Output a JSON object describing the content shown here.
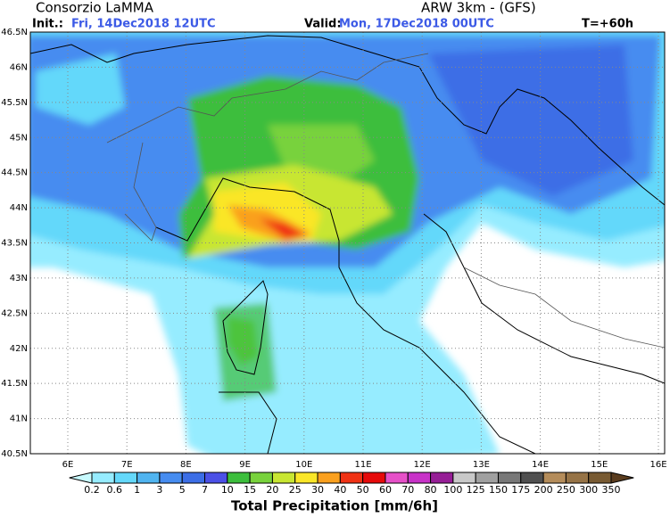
{
  "header": {
    "org": "Consorzio LaMMA",
    "model": "ARW 3km - (GFS)",
    "init_label": "Init.:",
    "init_time": "Fri, 14Dec2018 12UTC",
    "valid_label": "Valid:",
    "valid_time": "Mon, 17Dec2018 00UTC",
    "lead": "T=+60h"
  },
  "map": {
    "lat_labels": [
      "46.5N",
      "46N",
      "45.5N",
      "45N",
      "44.5N",
      "44N",
      "43.5N",
      "43N",
      "42.5N",
      "42N",
      "41.5N",
      "41N",
      "40.5N"
    ],
    "lon_labels": [
      "6E",
      "7E",
      "8E",
      "9E",
      "10E",
      "11E",
      "12E",
      "13E",
      "14E",
      "15E",
      "16E"
    ]
  },
  "colorbar": {
    "title": "Total Precipitation [mm/6h]",
    "levels": [
      0.2,
      0.6,
      1,
      3,
      5,
      7,
      10,
      15,
      20,
      25,
      30,
      40,
      50,
      60,
      70,
      80,
      100,
      125,
      150,
      175,
      200,
      250,
      300,
      350
    ],
    "colors": [
      "#c8fafe",
      "#96ecff",
      "#64d8fa",
      "#50b4f0",
      "#468cf0",
      "#3c6ee6",
      "#4b50e6",
      "#3cbe3c",
      "#78d23c",
      "#c8e632",
      "#fae628",
      "#faa01e",
      "#f03214",
      "#e60a0a",
      "#e650c8",
      "#c832c8",
      "#961e96",
      "#c8c8c8",
      "#a0a0a0",
      "#787878",
      "#505050",
      "#b48c5a",
      "#967346",
      "#785a32",
      "#5a3c1e"
    ]
  }
}
